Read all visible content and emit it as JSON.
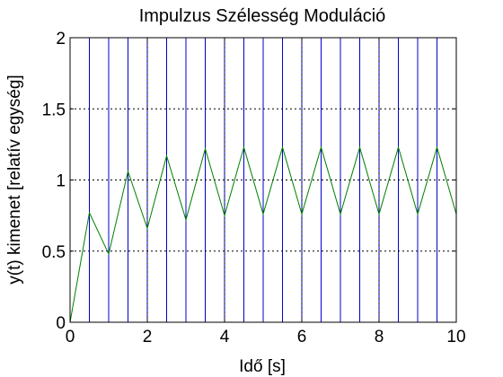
{
  "chart_data": {
    "type": "line",
    "title": "Impulzus Szélesség Moduláció",
    "xlabel": "Idő [s]",
    "ylabel": "y(t) kimenet [relatív egység]",
    "xlim": [
      0,
      10
    ],
    "ylim": [
      0,
      2
    ],
    "xticks": [
      0,
      2,
      4,
      6,
      8,
      10
    ],
    "xtick_labels": [
      "0",
      "2",
      "4",
      "6",
      "8",
      "10"
    ],
    "yticks": [
      0,
      0.5,
      1,
      1.5,
      2
    ],
    "ytick_labels": [
      "0",
      "0.5",
      "1",
      "1.5",
      "2"
    ],
    "grid": true,
    "pulse_period_lines_x": [
      0.5,
      1,
      1.5,
      2,
      2.5,
      3,
      3.5,
      4,
      4.5,
      5,
      5.5,
      6,
      6.5,
      7,
      7.5,
      8,
      8.5,
      9,
      9.5,
      10
    ],
    "series": [
      {
        "color": "#008000",
        "x": [
          0,
          0.5,
          1,
          1.5,
          2,
          2.5,
          3,
          3.5,
          4,
          4.5,
          5,
          5.5,
          6,
          6.5,
          7,
          7.5,
          8,
          8.5,
          9,
          9.5,
          10
        ],
        "y": [
          0,
          0.77,
          0.48,
          1.06,
          0.66,
          1.17,
          0.72,
          1.22,
          0.75,
          1.23,
          0.76,
          1.23,
          0.76,
          1.23,
          0.76,
          1.23,
          0.76,
          1.23,
          0.76,
          1.23,
          0.76
        ]
      }
    ],
    "colors": {
      "vertical_lines": "#0000cc",
      "grid": "#000000",
      "line": "#008000"
    }
  }
}
